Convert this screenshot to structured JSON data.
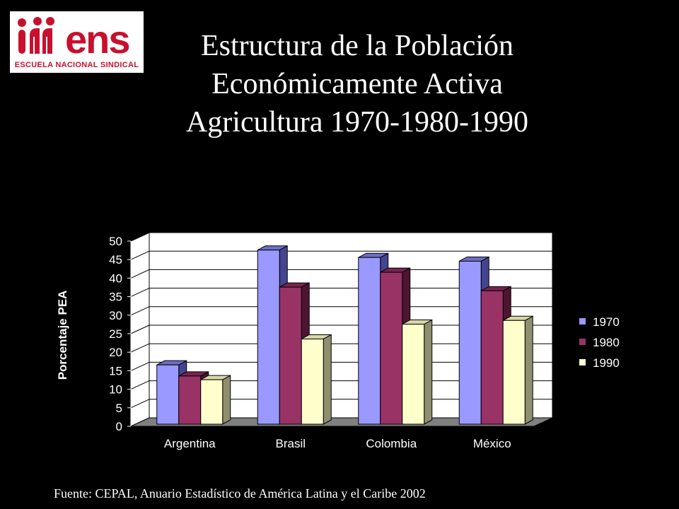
{
  "logo": {
    "mark": "ens",
    "text": "ESCUELA NACIONAL SINDICAL",
    "color": "#c8102e"
  },
  "title": {
    "line1": "Estructura de la Población",
    "line2": "Económicamente Activa",
    "line3": "Agricultura 1970-1980-1990"
  },
  "source": "Fuente: CEPAL, Anuario Estadístico de América Latina y el Caribe 2002",
  "chart_data": {
    "type": "bar",
    "ylabel": "Porcentaje PEA",
    "xlabel": "",
    "ylim": [
      0,
      50
    ],
    "ytick_step": 5,
    "grid": true,
    "legend_position": "right",
    "categories": [
      "Argentina",
      "Brasil",
      "Colombia",
      "México"
    ],
    "series": [
      {
        "name": "1970",
        "values": [
          16,
          47,
          45,
          44
        ],
        "color": "#9999ff",
        "top": "#6d6dc8",
        "side": "#44448f"
      },
      {
        "name": "1980",
        "values": [
          13,
          37,
          41,
          36
        ],
        "color": "#993366",
        "top": "#76254e",
        "side": "#4d1532"
      },
      {
        "name": "1990",
        "values": [
          12,
          23,
          27,
          28
        ],
        "color": "#ffffcc",
        "top": "#d8d8a8",
        "side": "#8f8f70"
      }
    ]
  }
}
